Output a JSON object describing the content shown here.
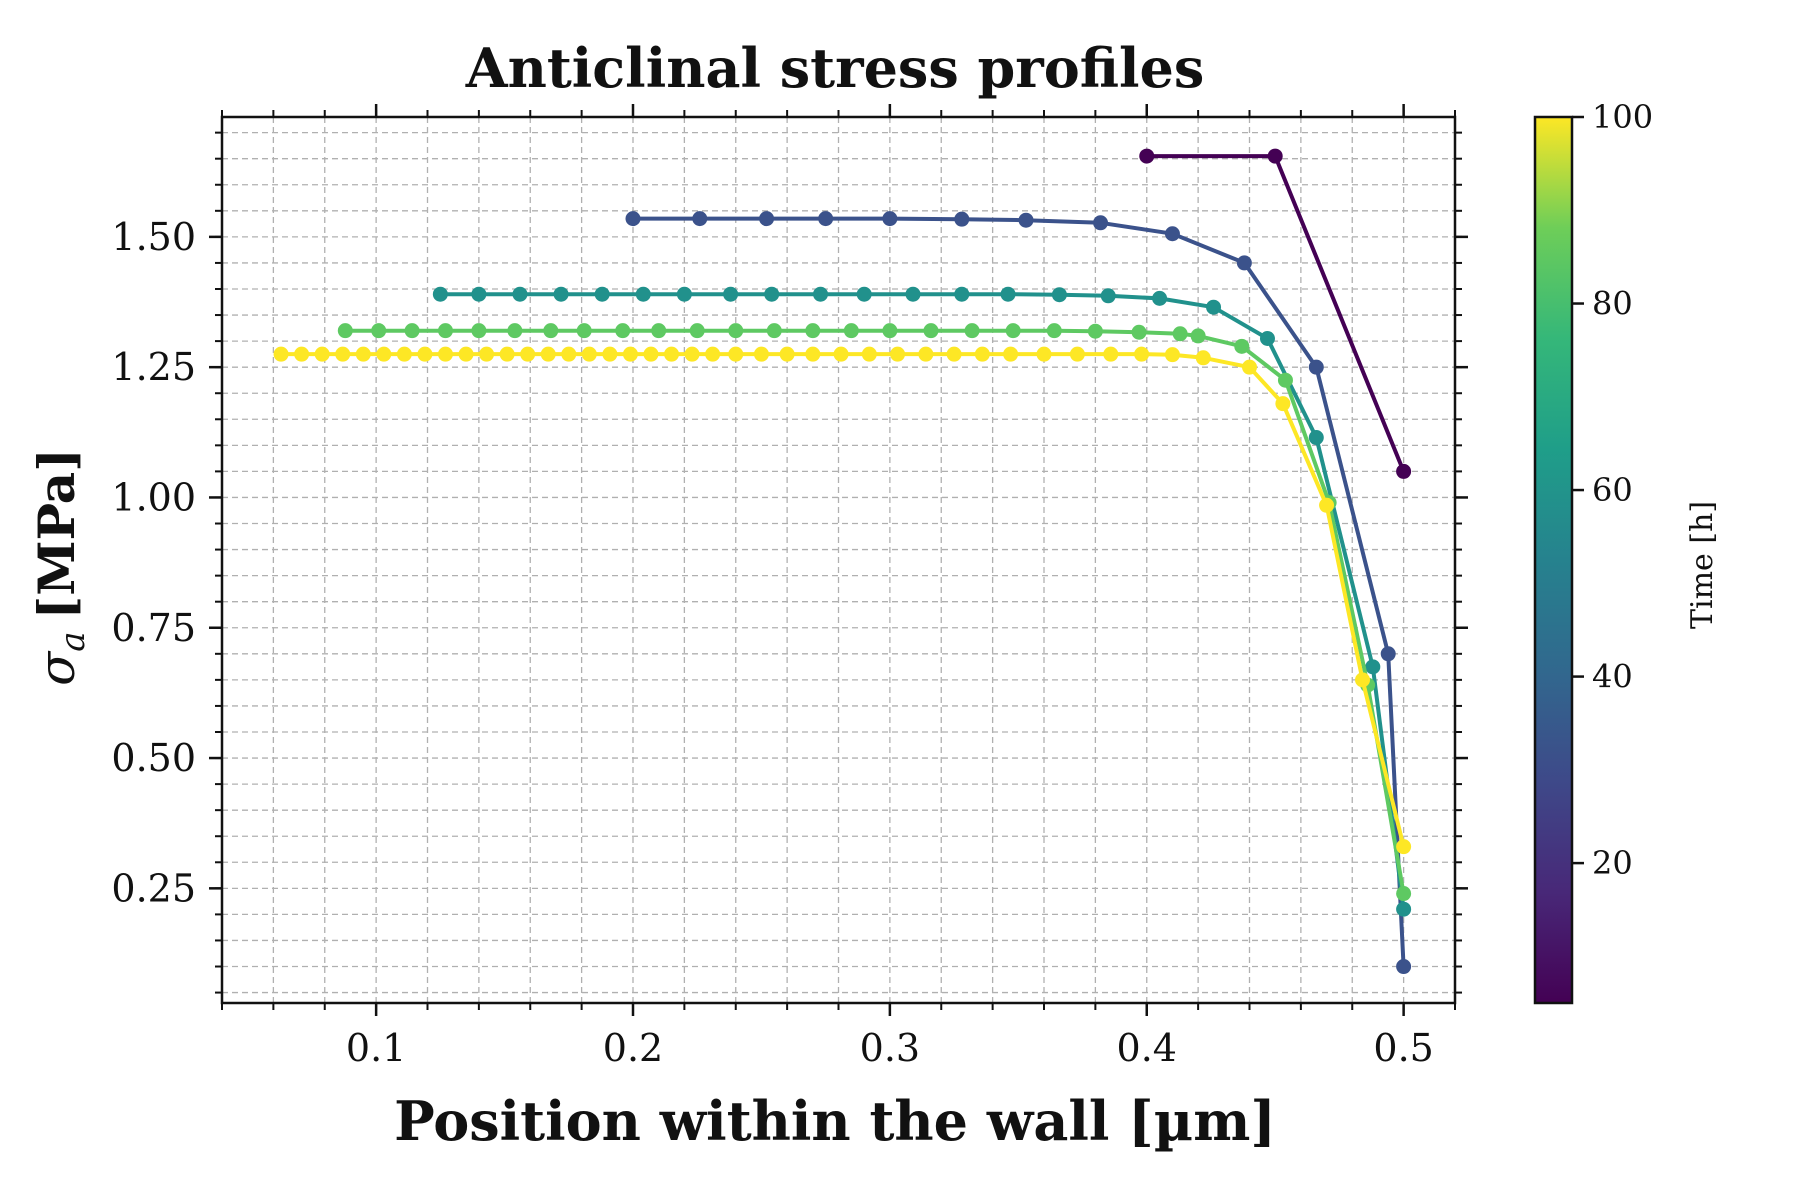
{
  "chart_data": {
    "type": "line",
    "title": "Anticlinal stress profiles",
    "xlabel": "Position within the wall [µm]",
    "ylabel_symbol": "σ",
    "ylabel_subscript": "a",
    "ylabel_unit": "[MPa]",
    "xlim": [
      0.04,
      0.52
    ],
    "ylim": [
      0.03,
      1.73
    ],
    "xticks": [
      0.1,
      0.2,
      0.3,
      0.4,
      0.5
    ],
    "xtick_labels": [
      "0.1",
      "0.2",
      "0.3",
      "0.4",
      "0.5"
    ],
    "yticks": [
      0.25,
      0.5,
      0.75,
      1.0,
      1.25,
      1.5
    ],
    "ytick_labels": [
      "0.25",
      "0.50",
      "0.75",
      "1.00",
      "1.25",
      "1.50"
    ],
    "grid": true,
    "colorbar": {
      "label": "Time [h]",
      "range": [
        5,
        100
      ],
      "ticks": [
        20,
        40,
        60,
        80,
        100
      ],
      "tick_labels": [
        "20",
        "40",
        "60",
        "80",
        "100"
      ],
      "colormap": "viridis"
    },
    "series": [
      {
        "time": 5,
        "color": "#440154",
        "x": [
          0.4,
          0.45,
          0.5
        ],
        "y": [
          1.655,
          1.655,
          1.05
        ]
      },
      {
        "time": 25,
        "color": "#3b528b",
        "x": [
          0.2,
          0.226,
          0.252,
          0.275,
          0.3,
          0.328,
          0.353,
          0.382,
          0.41,
          0.438,
          0.466,
          0.494,
          0.5
        ],
        "y": [
          1.535,
          1.535,
          1.535,
          1.535,
          1.535,
          1.534,
          1.532,
          1.527,
          1.506,
          1.45,
          1.25,
          0.7,
          0.1
        ]
      },
      {
        "time": 50,
        "color": "#21918c",
        "x": [
          0.125,
          0.14,
          0.156,
          0.172,
          0.188,
          0.204,
          0.22,
          0.238,
          0.254,
          0.273,
          0.29,
          0.309,
          0.328,
          0.346,
          0.366,
          0.385,
          0.405,
          0.426,
          0.447,
          0.466,
          0.488,
          0.5
        ],
        "y": [
          1.39,
          1.39,
          1.39,
          1.39,
          1.39,
          1.39,
          1.39,
          1.39,
          1.39,
          1.39,
          1.39,
          1.39,
          1.39,
          1.39,
          1.389,
          1.387,
          1.382,
          1.365,
          1.305,
          1.115,
          0.675,
          0.21
        ]
      },
      {
        "time": 75,
        "color": "#5ec962",
        "x": [
          0.088,
          0.101,
          0.114,
          0.127,
          0.14,
          0.154,
          0.168,
          0.181,
          0.196,
          0.21,
          0.225,
          0.24,
          0.255,
          0.27,
          0.285,
          0.3,
          0.316,
          0.332,
          0.348,
          0.364,
          0.38,
          0.397,
          0.413,
          0.42,
          0.437,
          0.454,
          0.471,
          0.486,
          0.5
        ],
        "y": [
          1.32,
          1.32,
          1.32,
          1.32,
          1.32,
          1.32,
          1.32,
          1.32,
          1.32,
          1.32,
          1.32,
          1.32,
          1.32,
          1.32,
          1.32,
          1.32,
          1.32,
          1.32,
          1.32,
          1.32,
          1.319,
          1.317,
          1.314,
          1.31,
          1.29,
          1.225,
          0.99,
          0.64,
          0.24
        ]
      },
      {
        "time": 100,
        "color": "#fde725",
        "x": [
          0.063,
          0.071,
          0.079,
          0.087,
          0.095,
          0.103,
          0.111,
          0.119,
          0.127,
          0.135,
          0.143,
          0.151,
          0.159,
          0.167,
          0.175,
          0.183,
          0.191,
          0.199,
          0.207,
          0.215,
          0.223,
          0.231,
          0.24,
          0.25,
          0.26,
          0.27,
          0.281,
          0.292,
          0.303,
          0.314,
          0.325,
          0.336,
          0.347,
          0.36,
          0.373,
          0.386,
          0.398,
          0.41,
          0.422,
          0.44,
          0.453,
          0.47,
          0.484,
          0.5
        ],
        "y": [
          1.275,
          1.275,
          1.275,
          1.275,
          1.275,
          1.275,
          1.275,
          1.275,
          1.275,
          1.275,
          1.275,
          1.275,
          1.275,
          1.275,
          1.275,
          1.275,
          1.275,
          1.275,
          1.275,
          1.275,
          1.275,
          1.275,
          1.275,
          1.275,
          1.275,
          1.275,
          1.275,
          1.275,
          1.275,
          1.275,
          1.275,
          1.275,
          1.275,
          1.275,
          1.275,
          1.275,
          1.275,
          1.274,
          1.268,
          1.25,
          1.18,
          0.985,
          0.65,
          0.33
        ]
      }
    ]
  }
}
